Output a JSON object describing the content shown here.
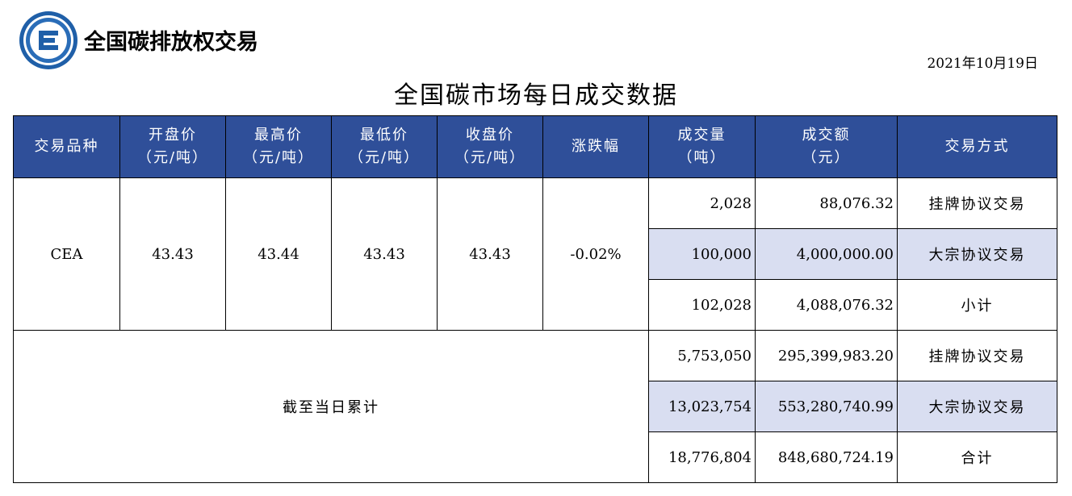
{
  "header": {
    "org_name": "全国碳排放权交易",
    "date": "2021年10月19日",
    "title": "全国碳市场每日成交数据"
  },
  "table": {
    "columns": [
      {
        "line1": "交易品种",
        "line2": ""
      },
      {
        "line1": "开盘价",
        "line2": "（元/吨）"
      },
      {
        "line1": "最高价",
        "line2": "（元/吨）"
      },
      {
        "line1": "最低价",
        "line2": "（元/吨）"
      },
      {
        "line1": "收盘价",
        "line2": "（元/吨）"
      },
      {
        "line1": "涨跌幅",
        "line2": ""
      },
      {
        "line1": "成交量",
        "line2": "（吨）"
      },
      {
        "line1": "成交额",
        "line2": "（元）"
      },
      {
        "line1": "交易方式",
        "line2": ""
      }
    ],
    "daily": {
      "product": "CEA",
      "open": "43.43",
      "high": "43.44",
      "low": "43.43",
      "close": "43.43",
      "change": "-0.02%",
      "rows": [
        {
          "volume": "2,028",
          "amount": "88,076.32",
          "method": "挂牌协议交易"
        },
        {
          "volume": "100,000",
          "amount": "4,000,000.00",
          "method": "大宗协议交易"
        },
        {
          "volume": "102,028",
          "amount": "4,088,076.32",
          "method": "小计"
        }
      ]
    },
    "cumulative": {
      "label": "截至当日累计",
      "rows": [
        {
          "volume": "5,753,050",
          "amount": "295,399,983.20",
          "method": "挂牌协议交易"
        },
        {
          "volume": "13,023,754",
          "amount": "553,280,740.99",
          "method": "大宗协议交易"
        },
        {
          "volume": "18,776,804",
          "amount": "848,680,724.19",
          "method": "合计"
        }
      ]
    }
  },
  "colors": {
    "header_bg": "#2f4f99",
    "highlight_bg": "#d9def1",
    "logo_blue": "#1f5fa8"
  }
}
